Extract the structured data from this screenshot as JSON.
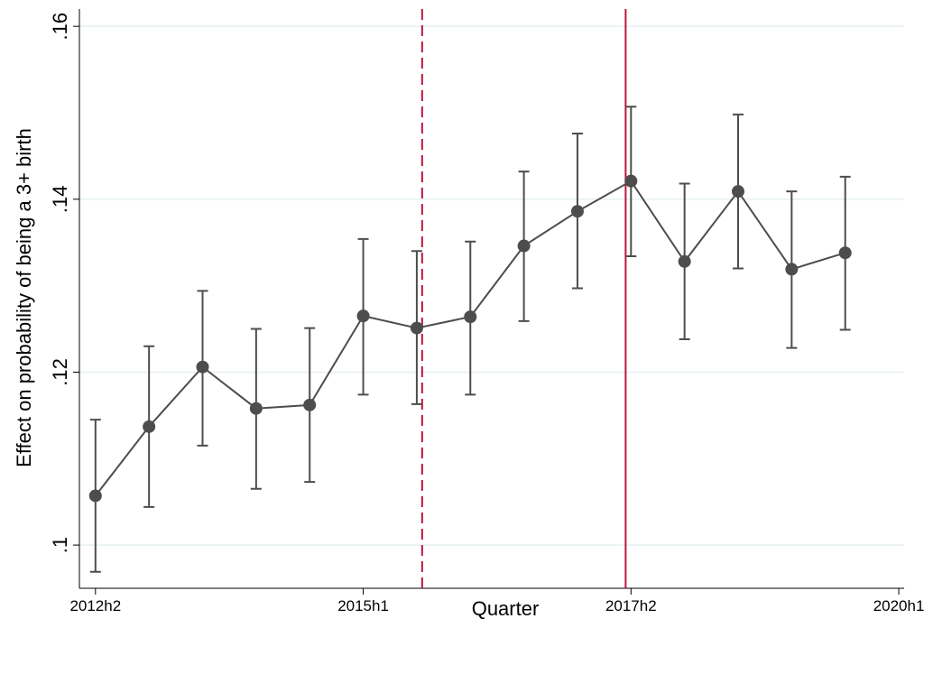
{
  "chart_data": {
    "type": "errorbar-line",
    "x_label": "Quarter",
    "y_label": "Effect on probability of being a 3+ birth",
    "x": [
      105,
      106,
      107,
      108,
      109,
      110,
      111,
      112,
      113,
      114,
      115,
      116,
      117,
      118,
      119
    ],
    "series": [
      {
        "color": "#4d4d4d",
        "values": [
          0.1057,
          0.1137,
          0.1206,
          0.1158,
          0.1162,
          0.1265,
          0.1251,
          0.1264,
          0.1346,
          0.1386,
          0.1421,
          0.1328,
          0.1409,
          0.1319,
          0.1338
        ],
        "lower": [
          0.0969,
          0.1044,
          0.1115,
          0.1065,
          0.1073,
          0.1174,
          0.1163,
          0.1174,
          0.1259,
          0.1297,
          0.1334,
          0.1238,
          0.132,
          0.1228,
          0.1249
        ],
        "upper": [
          0.1145,
          0.123,
          0.1294,
          0.125,
          0.1251,
          0.1354,
          0.134,
          0.1351,
          0.1432,
          0.1476,
          0.1507,
          0.1418,
          0.1498,
          0.1409,
          0.1426
        ]
      }
    ],
    "xlim": [
      104.7,
      120.1
    ],
    "xticks": [
      {
        "value": 105,
        "label": "2012h2"
      },
      {
        "value": 110,
        "label": "2015h1"
      },
      {
        "value": 115,
        "label": "2017h2"
      },
      {
        "value": 120,
        "label": "2020h1"
      }
    ],
    "ylim": [
      0.095,
      0.162
    ],
    "yticks": [
      {
        "value": 0.1,
        "label": ".1"
      },
      {
        "value": 0.12,
        "label": ".12"
      },
      {
        "value": 0.14,
        "label": ".14"
      },
      {
        "value": 0.16,
        "label": ".16"
      }
    ],
    "grid": true,
    "vlines": [
      {
        "x": 111.1,
        "style": "dashed",
        "color": "#c0143c"
      },
      {
        "x": 114.9,
        "style": "solid",
        "color": "#c0143c"
      }
    ]
  }
}
